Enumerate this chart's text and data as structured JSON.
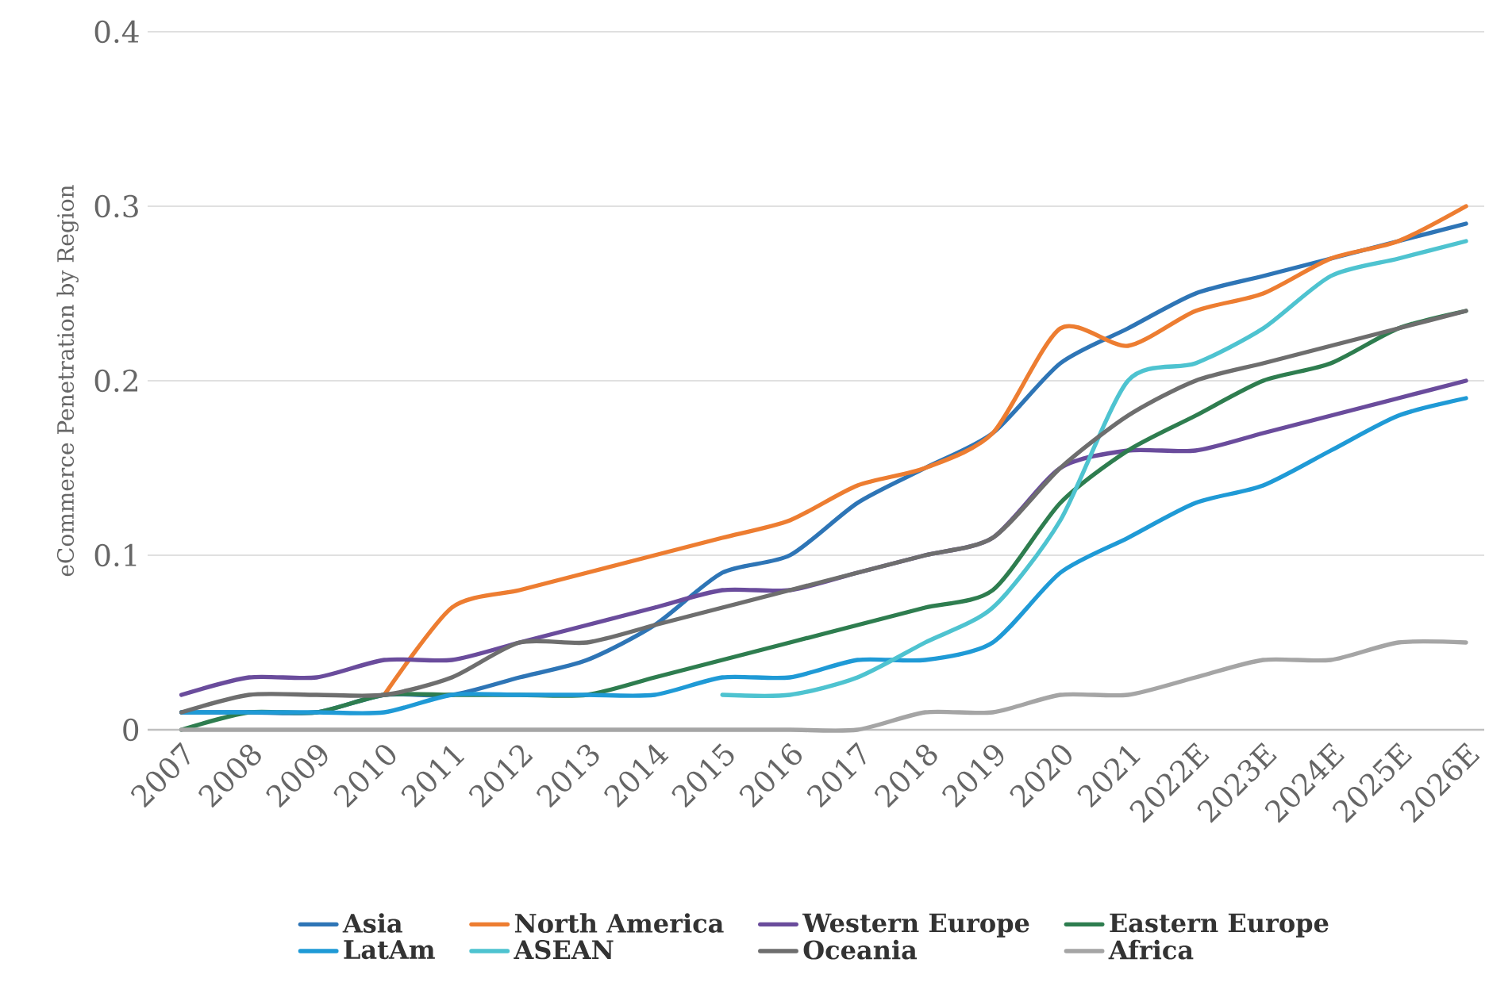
{
  "chart_data": {
    "type": "line",
    "ylabel": "eCommerce Penetration by Region",
    "categories": [
      "2007",
      "2008",
      "2009",
      "2010",
      "2011",
      "2012",
      "2013",
      "2014",
      "2015",
      "2016",
      "2017",
      "2018",
      "2019",
      "2020",
      "2021",
      "2022E",
      "2023E",
      "2024E",
      "2025E",
      "2026E"
    ],
    "series": [
      {
        "name": "Asia",
        "color": "#2e75b6",
        "values": [
          0.01,
          0.01,
          0.01,
          0.02,
          0.02,
          0.03,
          0.04,
          0.06,
          0.09,
          0.1,
          0.13,
          0.15,
          0.17,
          0.21,
          0.23,
          0.25,
          0.26,
          0.27,
          0.28,
          0.29
        ]
      },
      {
        "name": "North America",
        "color": "#ed7d31",
        "values": [
          null,
          null,
          null,
          0.02,
          0.07,
          0.08,
          0.09,
          0.1,
          0.11,
          0.12,
          0.14,
          0.15,
          0.17,
          0.23,
          0.22,
          0.24,
          0.25,
          0.27,
          0.28,
          0.3
        ]
      },
      {
        "name": "Western Europe",
        "color": "#6a4c9c",
        "values": [
          0.02,
          0.03,
          0.03,
          0.04,
          0.04,
          0.05,
          0.06,
          0.07,
          0.08,
          0.08,
          0.09,
          0.1,
          0.11,
          0.15,
          0.16,
          0.16,
          0.17,
          0.18,
          0.19,
          0.2
        ]
      },
      {
        "name": "Eastern Europe",
        "color": "#2e7d4f",
        "values": [
          0.0,
          0.01,
          0.01,
          0.02,
          0.02,
          0.02,
          0.02,
          0.03,
          0.04,
          0.05,
          0.06,
          0.07,
          0.08,
          0.13,
          0.16,
          0.18,
          0.2,
          0.21,
          0.23,
          0.24
        ]
      },
      {
        "name": "LatAm",
        "color": "#1f9ad6",
        "values": [
          0.01,
          0.01,
          0.01,
          0.01,
          0.02,
          0.02,
          0.02,
          0.02,
          0.03,
          0.03,
          0.04,
          0.04,
          0.05,
          0.09,
          0.11,
          0.13,
          0.14,
          0.16,
          0.18,
          0.19
        ]
      },
      {
        "name": "ASEAN",
        "color": "#4ec3d0",
        "values": [
          null,
          null,
          null,
          null,
          null,
          null,
          null,
          null,
          0.02,
          0.02,
          0.03,
          0.05,
          0.07,
          0.12,
          0.2,
          0.21,
          0.23,
          0.26,
          0.27,
          0.28
        ]
      },
      {
        "name": "Oceania",
        "color": "#6e6e6e",
        "values": [
          0.01,
          0.02,
          0.02,
          0.02,
          0.03,
          0.05,
          0.05,
          0.06,
          0.07,
          0.08,
          0.09,
          0.1,
          0.11,
          0.15,
          0.18,
          0.2,
          0.21,
          0.22,
          0.23,
          0.24
        ]
      },
      {
        "name": "Africa",
        "color": "#a5a5a5",
        "values": [
          0,
          0,
          0,
          0,
          0,
          0,
          0,
          0,
          0,
          0,
          0,
          0.01,
          0.01,
          0.02,
          0.02,
          0.03,
          0.04,
          0.04,
          0.05,
          0.05
        ]
      }
    ],
    "ylim": [
      0,
      0.4
    ],
    "yticks": [
      0,
      0.1,
      0.2,
      0.3,
      0.4
    ],
    "grid": "y",
    "legend": "bottom"
  }
}
